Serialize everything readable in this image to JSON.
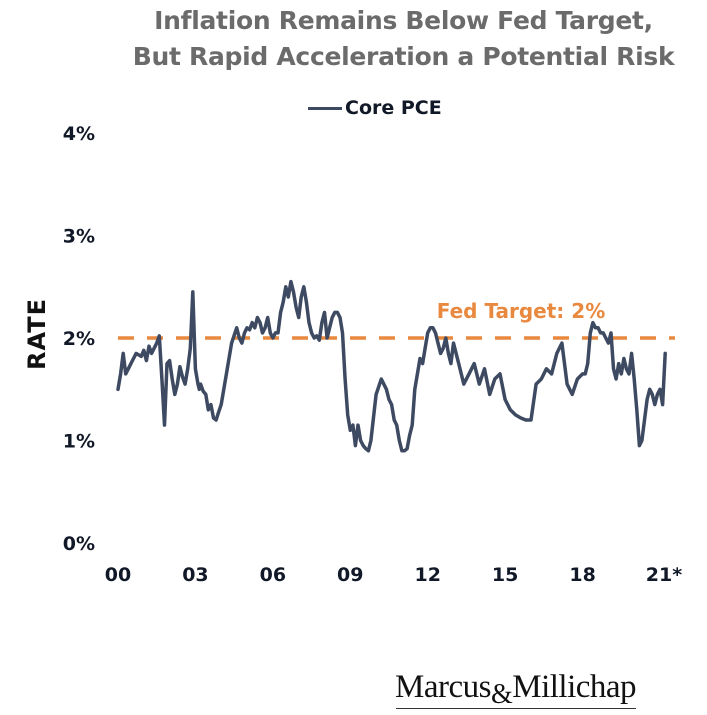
{
  "chart_data": {
    "type": "line",
    "title": "Inflation Remains Below Fed Target,",
    "subtitle": "But Rapid Acceleration a Potential Risk",
    "xlabel": "",
    "ylabel": "RATE",
    "ylim": [
      0,
      4
    ],
    "xlim": [
      2000,
      2021.2
    ],
    "y_ticks": [
      "0%",
      "1%",
      "2%",
      "3%",
      "4%"
    ],
    "y_tick_values": [
      0,
      1,
      2,
      3,
      4
    ],
    "x_ticks": [
      "00",
      "03",
      "06",
      "09",
      "12",
      "15",
      "18",
      "21*"
    ],
    "x_tick_values": [
      2000,
      2003,
      2006,
      2009,
      2012,
      2015,
      2018,
      2021
    ],
    "grid": false,
    "legend": {
      "placement": "top-center",
      "entries": [
        "Core PCE"
      ]
    },
    "colors": {
      "series": "#3d4a61",
      "target": "#e8893f",
      "title": "#6b6b6b"
    },
    "reference_line": {
      "label": "Fed Target: 2%",
      "value": 2.0,
      "style": "dashed"
    },
    "series": [
      {
        "name": "Core PCE",
        "x": [
          2000.0,
          2000.1,
          2000.2,
          2000.3,
          2000.4,
          2000.5,
          2000.7,
          2000.9,
          2001.0,
          2001.1,
          2001.2,
          2001.3,
          2001.4,
          2001.5,
          2001.6,
          2001.7,
          2001.8,
          2001.9,
          2002.0,
          2002.1,
          2002.2,
          2002.3,
          2002.4,
          2002.5,
          2002.6,
          2002.7,
          2002.8,
          2002.9,
          2003.0,
          2003.1,
          2003.15,
          2003.2,
          2003.3,
          2003.4,
          2003.5,
          2003.6,
          2003.7,
          2003.8,
          2003.9,
          2004.0,
          2004.2,
          2004.4,
          2004.6,
          2004.7,
          2004.8,
          2004.9,
          2005.0,
          2005.1,
          2005.2,
          2005.3,
          2005.4,
          2005.5,
          2005.6,
          2005.7,
          2005.8,
          2005.9,
          2006.0,
          2006.1,
          2006.2,
          2006.3,
          2006.4,
          2006.5,
          2006.6,
          2006.7,
          2006.8,
          2006.9,
          2007.0,
          2007.1,
          2007.2,
          2007.3,
          2007.4,
          2007.5,
          2007.6,
          2007.7,
          2007.8,
          2007.9,
          2008.0,
          2008.1,
          2008.2,
          2008.3,
          2008.4,
          2008.5,
          2008.6,
          2008.7,
          2008.8,
          2008.9,
          2009.0,
          2009.1,
          2009.2,
          2009.3,
          2009.4,
          2009.5,
          2009.6,
          2009.7,
          2009.8,
          2010.0,
          2010.2,
          2010.4,
          2010.5,
          2010.6,
          2010.7,
          2010.8,
          2010.9,
          2011.0,
          2011.1,
          2011.2,
          2011.3,
          2011.4,
          2011.5,
          2011.6,
          2011.7,
          2011.8,
          2011.9,
          2012.0,
          2012.1,
          2012.2,
          2012.3,
          2012.4,
          2012.5,
          2012.6,
          2012.7,
          2012.8,
          2012.9,
          2013.0,
          2013.2,
          2013.4,
          2013.6,
          2013.8,
          2014.0,
          2014.2,
          2014.4,
          2014.6,
          2014.8,
          2015.0,
          2015.2,
          2015.4,
          2015.6,
          2015.8,
          2016.0,
          2016.2,
          2016.4,
          2016.6,
          2016.8,
          2017.0,
          2017.2,
          2017.4,
          2017.6,
          2017.8,
          2018.0,
          2018.1,
          2018.2,
          2018.3,
          2018.4,
          2018.5,
          2018.6,
          2018.7,
          2018.8,
          2018.9,
          2019.0,
          2019.1,
          2019.2,
          2019.3,
          2019.4,
          2019.5,
          2019.6,
          2019.7,
          2019.8,
          2019.9,
          2020.0,
          2020.1,
          2020.2,
          2020.3,
          2020.4,
          2020.5,
          2020.6,
          2020.7,
          2020.8,
          2020.9,
          2021.0,
          2021.1,
          2021.2
        ],
        "y": [
          1.5,
          1.65,
          1.85,
          1.65,
          1.7,
          1.75,
          1.85,
          1.82,
          1.88,
          1.78,
          1.92,
          1.85,
          1.9,
          1.95,
          2.02,
          1.6,
          1.15,
          1.75,
          1.78,
          1.6,
          1.45,
          1.55,
          1.72,
          1.62,
          1.55,
          1.7,
          1.9,
          2.45,
          1.7,
          1.55,
          1.5,
          1.55,
          1.48,
          1.45,
          1.3,
          1.35,
          1.22,
          1.2,
          1.28,
          1.35,
          1.65,
          1.95,
          2.1,
          2.0,
          1.95,
          2.05,
          2.1,
          2.08,
          2.15,
          2.1,
          2.2,
          2.15,
          2.05,
          2.1,
          2.2,
          2.05,
          2.0,
          2.05,
          2.05,
          2.25,
          2.35,
          2.5,
          2.4,
          2.55,
          2.45,
          2.3,
          2.2,
          2.4,
          2.5,
          2.35,
          2.15,
          2.05,
          2.0,
          2.02,
          1.98,
          2.15,
          2.25,
          2.0,
          2.1,
          2.2,
          2.25,
          2.25,
          2.2,
          2.05,
          1.6,
          1.25,
          1.1,
          1.15,
          0.95,
          1.15,
          1.0,
          0.95,
          0.92,
          0.9,
          1.0,
          1.45,
          1.6,
          1.5,
          1.4,
          1.35,
          1.2,
          1.15,
          1.0,
          0.9,
          0.9,
          0.92,
          1.05,
          1.15,
          1.5,
          1.65,
          1.8,
          1.75,
          1.9,
          2.05,
          2.1,
          2.1,
          2.05,
          1.95,
          1.85,
          1.9,
          2.0,
          1.85,
          1.75,
          1.95,
          1.75,
          1.55,
          1.65,
          1.75,
          1.55,
          1.7,
          1.45,
          1.6,
          1.65,
          1.4,
          1.3,
          1.25,
          1.22,
          1.2,
          1.2,
          1.55,
          1.6,
          1.7,
          1.65,
          1.85,
          1.95,
          1.55,
          1.45,
          1.6,
          1.65,
          1.65,
          1.75,
          2.05,
          2.15,
          2.1,
          2.1,
          2.05,
          2.05,
          2.0,
          1.95,
          2.05,
          1.7,
          1.6,
          1.75,
          1.65,
          1.8,
          1.7,
          1.65,
          1.85,
          1.6,
          1.3,
          0.95,
          1.0,
          1.2,
          1.4,
          1.5,
          1.45,
          1.35,
          1.45,
          1.5,
          1.35,
          1.85
        ]
      }
    ]
  },
  "brand": {
    "logo_text_1": "Marcus",
    "logo_amp": "&",
    "logo_text_2": "Millichap"
  }
}
